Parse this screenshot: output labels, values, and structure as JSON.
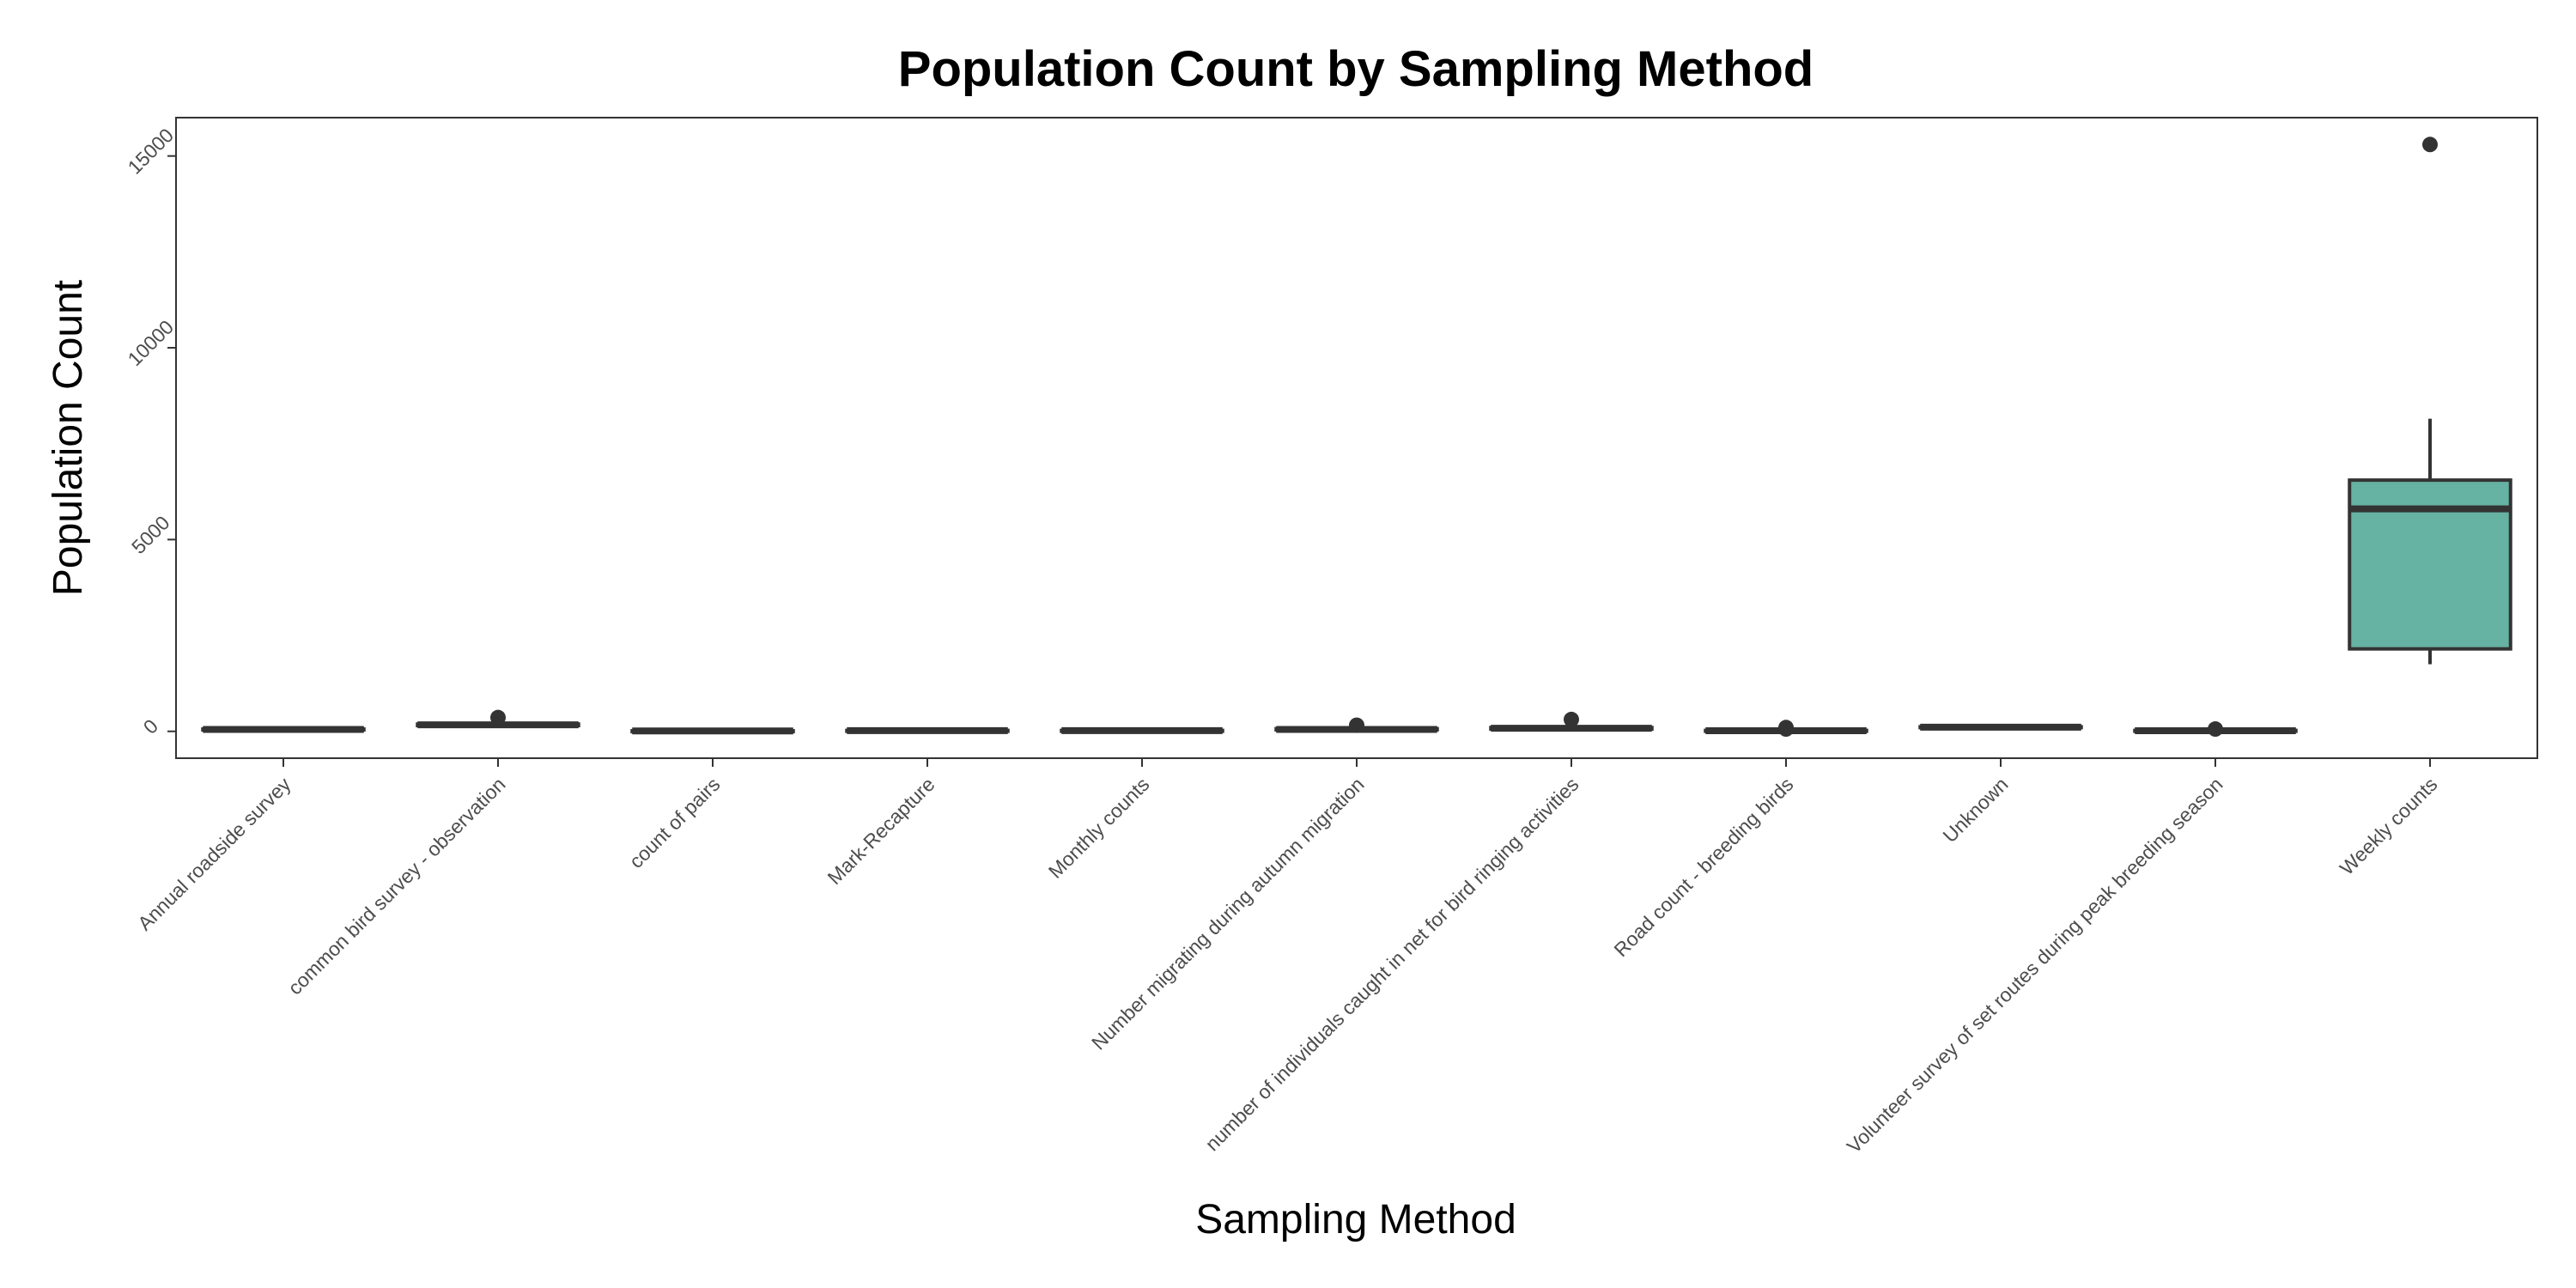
{
  "chart_data": {
    "type": "boxplot",
    "title": "Population Count by Sampling Method",
    "xlabel": "Sampling Method",
    "ylabel": "Population Count",
    "ylim": [
      -700,
      16000
    ],
    "yticks": [
      0,
      5000,
      10000,
      15000
    ],
    "grid": false,
    "legend": "none",
    "colors": {
      "box_outline": "#333333",
      "fill": "#66b2a3",
      "panel_border": "#333333",
      "tick_text": "#4d4d4d"
    },
    "categories": [
      "Annual roadside survey",
      "common bird survey - observation",
      "count of pairs",
      "Mark-Recapture",
      "Monthly counts",
      "Number migrating during autumn migration",
      "number of individuals caught in net for bird ringing activities",
      "Road count - breeding birds",
      "Unknown",
      "Volunteer survey of set routes during peak breeding season",
      "Weekly counts"
    ],
    "boxes": [
      {
        "category": "Annual roadside survey",
        "whisker_low": 40,
        "q1": 40,
        "median": 50,
        "q3": 60,
        "whisker_high": 60,
        "outliers": []
      },
      {
        "category": "common bird survey - observation",
        "whisker_low": 140,
        "q1": 150,
        "median": 170,
        "q3": 190,
        "whisker_high": 200,
        "outliers": [
          360
        ]
      },
      {
        "category": "count of pairs",
        "whisker_low": 0,
        "q1": 5,
        "median": 10,
        "q3": 15,
        "whisker_high": 20,
        "outliers": []
      },
      {
        "category": "Mark-Recapture",
        "whisker_low": 10,
        "q1": 15,
        "median": 20,
        "q3": 25,
        "whisker_high": 30,
        "outliers": []
      },
      {
        "category": "Monthly counts",
        "whisker_low": 10,
        "q1": 15,
        "median": 20,
        "q3": 25,
        "whisker_high": 30,
        "outliers": []
      },
      {
        "category": "Number migrating during autumn migration",
        "whisker_low": 30,
        "q1": 40,
        "median": 50,
        "q3": 70,
        "whisker_high": 80,
        "outliers": [
          160
        ]
      },
      {
        "category": "number of individuals caught in net for bird ringing activities",
        "whisker_low": 50,
        "q1": 60,
        "median": 80,
        "q3": 100,
        "whisker_high": 110,
        "outliers": [
          310
        ]
      },
      {
        "category": "Road count - breeding birds",
        "whisker_low": 0,
        "q1": 5,
        "median": 15,
        "q3": 25,
        "whisker_high": 40,
        "outliers": [
          60,
          100
        ]
      },
      {
        "category": "Unknown",
        "whisker_low": 90,
        "q1": 100,
        "median": 110,
        "q3": 120,
        "whisker_high": 130,
        "outliers": []
      },
      {
        "category": "Volunteer survey of set routes during peak breeding season",
        "whisker_low": 0,
        "q1": 5,
        "median": 15,
        "q3": 25,
        "whisker_high": 35,
        "outliers": [
          60
        ]
      },
      {
        "category": "Weekly counts",
        "whisker_low": 1750,
        "q1": 2150,
        "median": 5800,
        "q3": 6550,
        "whisker_high": 8150,
        "outliers": [
          15300
        ]
      }
    ]
  }
}
